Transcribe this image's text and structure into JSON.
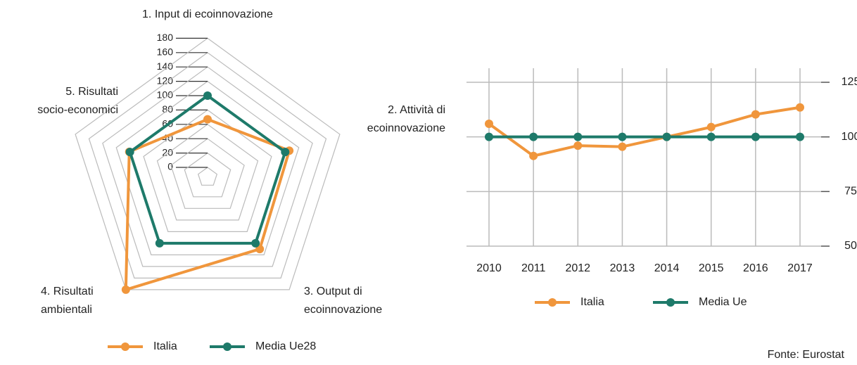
{
  "chart_data": [
    {
      "type": "radar",
      "categories": [
        "1. Input di ecoinnovazione",
        "2. Attività di\necoinnovazione",
        "3. Output di\necoinnovazione",
        "4. Risultati\nambientali",
        "5. Risultati\nsocio-economici"
      ],
      "rlim": [
        0,
        180
      ],
      "rticks": [
        0,
        20,
        40,
        60,
        80,
        100,
        120,
        140,
        160,
        180
      ],
      "series": [
        {
          "name": "Italia",
          "color": "#f0963c",
          "values": [
            67,
            106,
            110,
            180,
            101
          ]
        },
        {
          "name": "Media Ue28",
          "color": "#1e7a6a",
          "values": [
            100,
            100,
            100,
            100,
            100
          ]
        }
      ]
    },
    {
      "type": "line",
      "categories": [
        "2010",
        "2011",
        "2012",
        "2013",
        "2014",
        "2015",
        "2016",
        "2017"
      ],
      "ylim": [
        50,
        125
      ],
      "yticks": [
        50,
        75,
        100,
        125
      ],
      "grid": true,
      "series": [
        {
          "name": "Italia",
          "color": "#f0963c",
          "values": [
            106,
            91.3,
            96,
            95.5,
            100,
            104.5,
            110.3,
            113.5
          ]
        },
        {
          "name": "Media Ue",
          "color": "#1e7a6a",
          "values": [
            100,
            100,
            100,
            100,
            100,
            100,
            100,
            100
          ]
        }
      ]
    }
  ],
  "source": "Fonte: Eurostat"
}
